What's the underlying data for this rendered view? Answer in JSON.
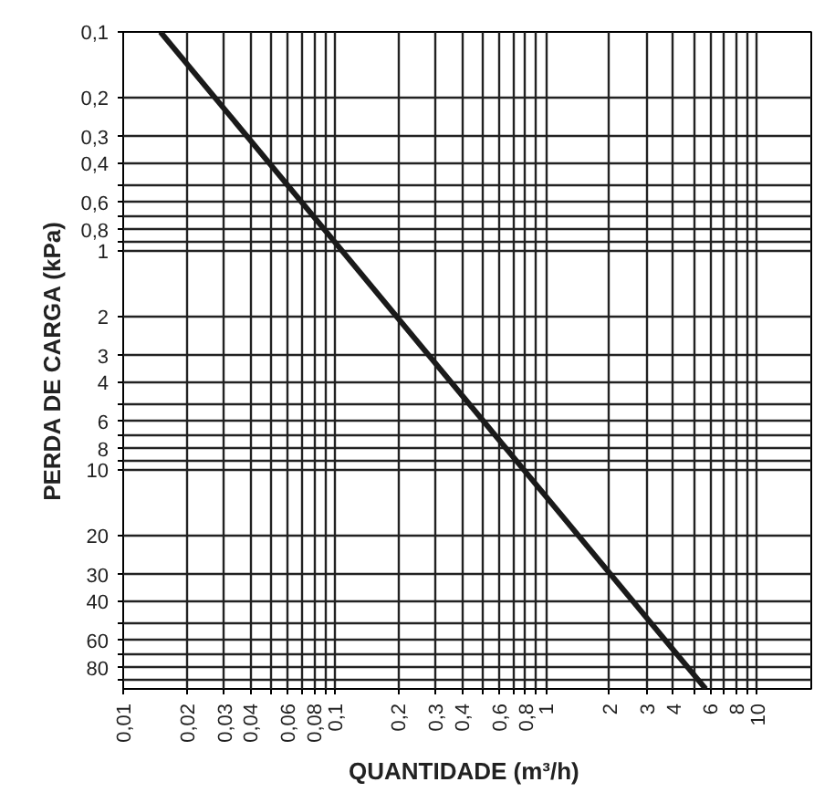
{
  "chart_data": {
    "type": "line",
    "xlabel": "QUANTIDADE  (m³/h)",
    "ylabel": "PERDA DE CARGA (kPa)",
    "log": "xy",
    "grid": true,
    "marker": "none",
    "line_style": "solid",
    "x": [
      0.015,
      5.7
    ],
    "series": [
      {
        "color": "#1a1a1a",
        "values": [
          0.1,
          100
        ]
      }
    ],
    "xlim": [
      0.01,
      18
    ],
    "ylim": [
      100,
      0.1
    ],
    "xticks": [
      {
        "value": 0.01,
        "label": "0,01"
      },
      {
        "value": 0.02,
        "label": "0,02"
      },
      {
        "value": 0.03,
        "label": "0,03"
      },
      {
        "value": 0.04,
        "label": "0,04"
      },
      {
        "value": 0.05,
        "label": null
      },
      {
        "value": 0.06,
        "label": "0,06"
      },
      {
        "value": 0.07,
        "label": null
      },
      {
        "value": 0.08,
        "label": "0,08"
      },
      {
        "value": 0.09,
        "label": null
      },
      {
        "value": 0.1,
        "label": "0,1"
      },
      {
        "value": 0.2,
        "label": "0,2"
      },
      {
        "value": 0.3,
        "label": "0,3"
      },
      {
        "value": 0.4,
        "label": "0,4"
      },
      {
        "value": 0.5,
        "label": null
      },
      {
        "value": 0.6,
        "label": "0,6"
      },
      {
        "value": 0.7,
        "label": null
      },
      {
        "value": 0.8,
        "label": "0,8"
      },
      {
        "value": 0.9,
        "label": null
      },
      1,
      2,
      3,
      4,
      {
        "value": 5,
        "label": null
      },
      6,
      {
        "value": 7,
        "label": null
      },
      8,
      {
        "value": 9,
        "label": null
      },
      10
    ],
    "yticks": [
      {
        "value": 0.1,
        "label": "0,1"
      },
      {
        "value": 0.2,
        "label": "0,2"
      },
      {
        "value": 0.3,
        "label": "0,3"
      },
      {
        "value": 0.4,
        "label": "0,4"
      },
      {
        "value": 0.5,
        "label": null
      },
      {
        "value": 0.6,
        "label": "0,6"
      },
      {
        "value": 0.7,
        "label": null
      },
      {
        "value": 0.8,
        "label": "0,8"
      },
      {
        "value": 0.9,
        "label": null
      },
      1,
      2,
      3,
      4,
      {
        "value": 5,
        "label": null
      },
      6,
      {
        "value": 7,
        "label": null
      },
      8,
      {
        "value": 9,
        "label": null
      },
      10,
      20,
      30,
      40,
      {
        "value": 50,
        "label": null
      },
      60,
      {
        "value": 70,
        "label": null
      },
      80,
      {
        "value": 90,
        "label": null
      }
    ]
  }
}
